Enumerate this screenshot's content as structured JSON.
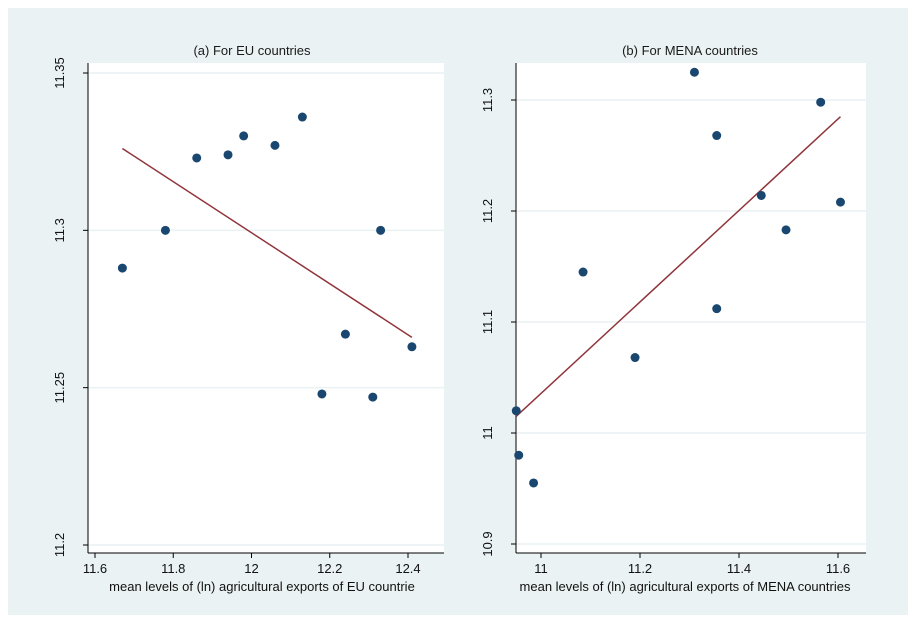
{
  "colors": {
    "outer_background": "#eaf2f3",
    "plot_background": "#ffffff",
    "gridline": "#eaf2f3",
    "marker": "#1a476f",
    "fit_line": "#90353b",
    "axis": "#000000"
  },
  "chart_data": [
    {
      "type": "scatter",
      "title": "(a) For EU countries",
      "xlabel": "mean levels of (ln) agricultural exports of EU countrie",
      "ylabel": "",
      "xlim": [
        11.6,
        12.42
      ],
      "ylim": [
        11.195,
        11.362
      ],
      "xticks": [
        "11.6",
        "11.8",
        "12",
        "12.2",
        "12.4"
      ],
      "xtick_values": [
        11.6,
        11.8,
        12.0,
        12.2,
        12.4
      ],
      "yticks": [
        "11.2",
        "11.25",
        "11.3",
        "11.35"
      ],
      "ytick_values": [
        11.2,
        11.25,
        11.3,
        11.35
      ],
      "grid": true,
      "points": [
        {
          "x": 11.67,
          "y": 11.288
        },
        {
          "x": 11.78,
          "y": 11.3
        },
        {
          "x": 11.86,
          "y": 11.323
        },
        {
          "x": 11.94,
          "y": 11.324
        },
        {
          "x": 11.98,
          "y": 11.33
        },
        {
          "x": 12.06,
          "y": 11.327
        },
        {
          "x": 12.13,
          "y": 11.336
        },
        {
          "x": 12.18,
          "y": 11.248
        },
        {
          "x": 12.24,
          "y": 11.267
        },
        {
          "x": 12.31,
          "y": 11.247
        },
        {
          "x": 12.33,
          "y": 11.3
        },
        {
          "x": 12.41,
          "y": 11.263
        }
      ],
      "fit_line": {
        "x": [
          11.67,
          12.41
        ],
        "y": [
          11.326,
          11.266
        ]
      }
    },
    {
      "type": "scatter",
      "title": "(b) For MENA countries",
      "xlabel": "mean levels of (ln) agricultural exports of MENA countries",
      "ylabel": "",
      "xlim": [
        10.92,
        11.63
      ],
      "ylim": [
        10.9,
        11.335
      ],
      "xticks": [
        "11",
        "11.2",
        "11.4",
        "11.6"
      ],
      "xtick_values": [
        11.0,
        11.2,
        11.4,
        11.6
      ],
      "yticks": [
        "10.9",
        "11",
        "11.1",
        "11.2",
        "11.3"
      ],
      "ytick_values": [
        10.9,
        11.0,
        11.1,
        11.2,
        11.3
      ],
      "grid": true,
      "points": [
        {
          "x": 10.95,
          "y": 11.02
        },
        {
          "x": 10.955,
          "y": 10.98
        },
        {
          "x": 10.985,
          "y": 10.955
        },
        {
          "x": 11.085,
          "y": 11.145
        },
        {
          "x": 11.19,
          "y": 11.068
        },
        {
          "x": 11.31,
          "y": 11.325
        },
        {
          "x": 11.355,
          "y": 11.268
        },
        {
          "x": 11.355,
          "y": 11.112
        },
        {
          "x": 11.445,
          "y": 11.214
        },
        {
          "x": 11.495,
          "y": 11.183
        },
        {
          "x": 11.565,
          "y": 11.298
        },
        {
          "x": 11.605,
          "y": 11.208
        }
      ],
      "fit_line": {
        "x": [
          10.95,
          11.605
        ],
        "y": [
          11.015,
          11.285
        ]
      }
    }
  ]
}
